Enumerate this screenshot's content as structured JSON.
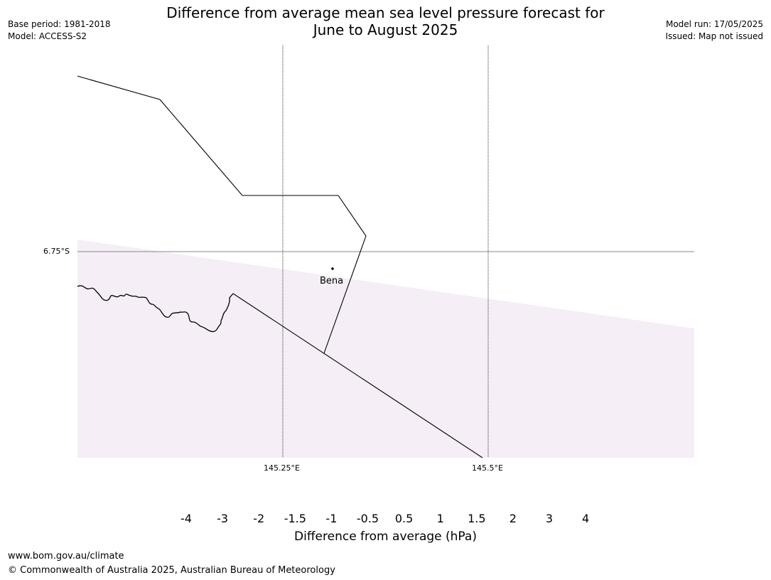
{
  "header": {
    "base_period": "Base period: 1981-2018",
    "model": "Model: ACCESS-S2",
    "title_line1": "Difference from average mean sea level pressure forecast for",
    "title_line2": "June to August 2025",
    "model_run": "Model run: 17/05/2025",
    "issued": "Issued: Map not issued"
  },
  "map": {
    "lat_label": "6.75°S",
    "lon_labels": [
      "145.25°E",
      "145.5°E"
    ],
    "place_label": "Bena",
    "shade_color": "#f5eef6"
  },
  "colorbar": {
    "label": "Difference from average (hPa)",
    "ticks": [
      "-4",
      "-3",
      "-2",
      "-1.5",
      "-1",
      "-0.5",
      "0.5",
      "1",
      "1.5",
      "2",
      "3",
      "4"
    ],
    "colors": [
      "#0d6b61",
      "#1b9096",
      "#6aa8d0",
      "#a7b8dc",
      "#d0d0e4",
      "#f5eef6",
      "#ffffff",
      "#fddede",
      "#f89fb6",
      "#dc3597",
      "#ae017e",
      "#7a0177",
      "#49006a"
    ]
  },
  "footer": {
    "url": "www.bom.gov.au/climate",
    "copyright": "© Commonwealth of Australia 2025, Australian Bureau of Meteorology"
  }
}
